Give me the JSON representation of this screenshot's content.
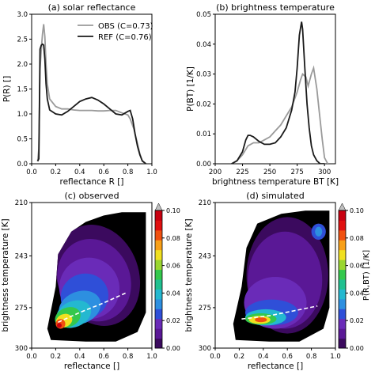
{
  "colors": {
    "obs": "#9a9a9a",
    "ref": "#1a1a1a",
    "trend": "#ffffff",
    "colormap": [
      "#000000",
      "#3b0a5e",
      "#5a1896",
      "#6a2bb8",
      "#2f4fd8",
      "#2d8fe0",
      "#24b8d0",
      "#20c090",
      "#34c84c",
      "#9ad630",
      "#f0e020",
      "#f8a018",
      "#f05010",
      "#e01010",
      "#c80010",
      "#c0c0c0"
    ]
  },
  "chart_data": [
    {
      "id": "a",
      "type": "line",
      "title": "(a) solar reflectance",
      "xlabel": "reflectance R []",
      "ylabel": "P(R) []",
      "xlim": [
        0,
        1
      ],
      "ylim": [
        0,
        3
      ],
      "xticks": [
        "0.0",
        "0.2",
        "0.4",
        "0.6",
        "0.8",
        "1.0"
      ],
      "xtick_values": [
        0,
        0.2,
        0.4,
        0.6,
        0.8,
        1.0
      ],
      "yticks": [
        "0.0",
        "0.5",
        "1.0",
        "1.5",
        "2.0",
        "2.5",
        "3.0"
      ],
      "ytick_values": [
        0,
        0.5,
        1.0,
        1.5,
        2.0,
        2.5,
        3.0
      ],
      "legend_position": "upper-right",
      "series": [
        {
          "name": "OBS (C=0.73)",
          "color": "obs",
          "x": [
            0.05,
            0.06,
            0.07,
            0.08,
            0.09,
            0.1,
            0.11,
            0.12,
            0.13,
            0.15,
            0.2,
            0.25,
            0.3,
            0.35,
            0.4,
            0.45,
            0.5,
            0.55,
            0.6,
            0.65,
            0.7,
            0.75,
            0.8,
            0.82,
            0.85,
            0.88,
            0.9,
            0.92,
            0.95
          ],
          "y": [
            0.05,
            0.3,
            1.9,
            2.3,
            2.6,
            2.8,
            2.55,
            2.0,
            1.6,
            1.3,
            1.15,
            1.1,
            1.1,
            1.08,
            1.07,
            1.07,
            1.07,
            1.06,
            1.06,
            1.07,
            1.07,
            1.02,
            0.98,
            0.9,
            0.7,
            0.4,
            0.2,
            0.05,
            0.0
          ]
        },
        {
          "name": "REF (C=0.76)",
          "color": "ref",
          "x": [
            0.05,
            0.06,
            0.07,
            0.08,
            0.09,
            0.1,
            0.11,
            0.12,
            0.13,
            0.15,
            0.2,
            0.25,
            0.3,
            0.35,
            0.4,
            0.45,
            0.5,
            0.55,
            0.6,
            0.65,
            0.7,
            0.75,
            0.8,
            0.82,
            0.84,
            0.86,
            0.88,
            0.9,
            0.92,
            0.95
          ],
          "y": [
            0.05,
            0.1,
            2.3,
            2.38,
            2.4,
            2.38,
            2.1,
            1.6,
            1.3,
            1.08,
            1.0,
            0.98,
            1.05,
            1.15,
            1.25,
            1.3,
            1.33,
            1.28,
            1.2,
            1.1,
            1.0,
            0.98,
            1.05,
            1.07,
            0.9,
            0.6,
            0.35,
            0.18,
            0.06,
            0.0
          ]
        }
      ]
    },
    {
      "id": "b",
      "type": "line",
      "title": "(b) brightness temperature",
      "xlabel": "brightness temperature BT [K]",
      "ylabel": "P(BT) [1/K]",
      "xlim": [
        200,
        310
      ],
      "ylim": [
        0,
        0.05
      ],
      "xticks": [
        "200",
        "225",
        "250",
        "275",
        "300"
      ],
      "xtick_values": [
        200,
        225,
        250,
        275,
        300
      ],
      "yticks": [
        "0.00",
        "0.01",
        "0.02",
        "0.03",
        "0.04",
        "0.05"
      ],
      "ytick_values": [
        0,
        0.01,
        0.02,
        0.03,
        0.04,
        0.05
      ],
      "series": [
        {
          "name": "OBS",
          "color": "obs",
          "x": [
            215,
            220,
            225,
            230,
            235,
            240,
            245,
            250,
            255,
            260,
            265,
            270,
            275,
            278,
            280,
            283,
            285,
            288,
            290,
            293,
            295,
            298,
            300,
            303
          ],
          "y": [
            0.0,
            0.001,
            0.003,
            0.006,
            0.007,
            0.007,
            0.008,
            0.009,
            0.011,
            0.013,
            0.016,
            0.019,
            0.024,
            0.028,
            0.03,
            0.029,
            0.026,
            0.03,
            0.032,
            0.025,
            0.018,
            0.008,
            0.002,
            0.0
          ]
        },
        {
          "name": "REF",
          "color": "ref",
          "x": [
            215,
            220,
            225,
            228,
            230,
            232,
            235,
            240,
            245,
            250,
            255,
            260,
            265,
            270,
            273,
            275,
            277,
            279,
            280,
            282,
            284,
            286,
            288,
            290,
            293,
            296,
            300
          ],
          "y": [
            0.0,
            0.001,
            0.004,
            0.008,
            0.0095,
            0.0095,
            0.009,
            0.0075,
            0.0065,
            0.0065,
            0.007,
            0.009,
            0.012,
            0.018,
            0.024,
            0.032,
            0.043,
            0.0475,
            0.045,
            0.032,
            0.02,
            0.012,
            0.006,
            0.003,
            0.001,
            0.0,
            0.0
          ]
        }
      ]
    },
    {
      "id": "c",
      "type": "heatmap",
      "title": "(c) observed",
      "xlabel": "reflectance []",
      "ylabel": "brightness temperature [K]",
      "xlim": [
        0,
        1
      ],
      "ylim": [
        300,
        210
      ],
      "xticks": [
        "0.0",
        "0.2",
        "0.4",
        "0.6",
        "0.8",
        "1.0"
      ],
      "xtick_values": [
        0,
        0.2,
        0.4,
        0.6,
        0.8,
        1.0
      ],
      "yticks": [
        "210",
        "243",
        "275",
        "300"
      ],
      "ytick_values": [
        210,
        243,
        275,
        300
      ],
      "extent": {
        "poly": [
          [
            0.16,
            295
          ],
          [
            0.13,
            288
          ],
          [
            0.2,
            262
          ],
          [
            0.22,
            242
          ],
          [
            0.33,
            228
          ],
          [
            0.45,
            222
          ],
          [
            0.6,
            218
          ],
          [
            0.75,
            216
          ],
          [
            0.95,
            216
          ],
          [
            0.95,
            278
          ],
          [
            0.88,
            290
          ],
          [
            0.7,
            296
          ],
          [
            0.45,
            296
          ]
        ]
      },
      "contours": [
        {
          "level": 1,
          "cx": 0.55,
          "cy": 255,
          "rx": 0.34,
          "ry": 32,
          "rot": -20
        },
        {
          "level": 2,
          "cx": 0.52,
          "cy": 258,
          "rx": 0.3,
          "ry": 26,
          "rot": -22
        },
        {
          "level": 3,
          "cx": 0.48,
          "cy": 263,
          "rx": 0.25,
          "ry": 19,
          "rot": -22
        },
        {
          "level": 4,
          "cx": 0.44,
          "cy": 268,
          "rx": 0.2,
          "ry": 14,
          "rot": -22
        },
        {
          "level": 5,
          "cx": 0.4,
          "cy": 275,
          "rx": 0.18,
          "ry": 10,
          "rot": -22
        },
        {
          "level": 6,
          "cx": 0.35,
          "cy": 279,
          "rx": 0.15,
          "ry": 8,
          "rot": -22
        },
        {
          "level": 8,
          "cx": 0.3,
          "cy": 281,
          "rx": 0.11,
          "ry": 6,
          "rot": -22
        },
        {
          "level": 10,
          "cx": 0.27,
          "cy": 283,
          "rx": 0.07,
          "ry": 4,
          "rot": -22
        },
        {
          "level": 12,
          "cx": 0.24,
          "cy": 285,
          "rx": 0.04,
          "ry": 3,
          "rot": -20
        },
        {
          "level": 14,
          "cx": 0.23,
          "cy": 286,
          "rx": 0.02,
          "ry": 1.5,
          "rot": 0
        }
      ],
      "trend": {
        "x": [
          0.22,
          0.4,
          0.6,
          0.78
        ],
        "y": [
          284,
          278,
          272,
          266
        ]
      }
    },
    {
      "id": "d",
      "type": "heatmap",
      "title": "(d) simulated",
      "xlabel": "reflectance []",
      "ylabel": "brightness temperature [K]",
      "xlim": [
        0,
        1
      ],
      "ylim": [
        300,
        210
      ],
      "xticks": [
        "0.0",
        "0.2",
        "0.4",
        "0.6",
        "0.8",
        "1.0"
      ],
      "xtick_values": [
        0,
        0.2,
        0.4,
        0.6,
        0.8,
        1.0
      ],
      "yticks": [
        "210",
        "243",
        "275",
        "300"
      ],
      "ytick_values": [
        210,
        243,
        275,
        300
      ],
      "extent": {
        "poly": [
          [
            0.17,
            295
          ],
          [
            0.15,
            285
          ],
          [
            0.22,
            262
          ],
          [
            0.26,
            238
          ],
          [
            0.35,
            223
          ],
          [
            0.55,
            217
          ],
          [
            0.75,
            215
          ],
          [
            0.95,
            215
          ],
          [
            0.95,
            275
          ],
          [
            0.9,
            288
          ],
          [
            0.7,
            296
          ],
          [
            0.45,
            296
          ]
        ]
      },
      "contours": [
        {
          "level": 1,
          "cx": 0.6,
          "cy": 255,
          "rx": 0.34,
          "ry": 36,
          "rot": 0
        },
        {
          "level": 2,
          "cx": 0.58,
          "cy": 258,
          "rx": 0.31,
          "ry": 30,
          "rot": 0
        },
        {
          "level": 3,
          "cx": 0.5,
          "cy": 272,
          "rx": 0.26,
          "ry": 16,
          "rot": 0
        },
        {
          "level": 4,
          "cx": 0.47,
          "cy": 278,
          "rx": 0.22,
          "ry": 8,
          "rot": 0
        },
        {
          "level": 6,
          "cx": 0.42,
          "cy": 281,
          "rx": 0.17,
          "ry": 5,
          "rot": 0
        },
        {
          "level": 8,
          "cx": 0.38,
          "cy": 282,
          "rx": 0.13,
          "ry": 3.5,
          "rot": 0
        },
        {
          "level": 10,
          "cx": 0.37,
          "cy": 282.5,
          "rx": 0.09,
          "ry": 2.5,
          "rot": 0
        },
        {
          "level": 12,
          "cx": 0.38,
          "cy": 282.5,
          "rx": 0.05,
          "ry": 1.5,
          "rot": 0
        },
        {
          "level": 4,
          "cx": 0.86,
          "cy": 228,
          "rx": 0.06,
          "ry": 5,
          "rot": 0
        },
        {
          "level": 5,
          "cx": 0.86,
          "cy": 228,
          "rx": 0.03,
          "ry": 3,
          "rot": 0
        }
      ],
      "trend": {
        "x": [
          0.22,
          0.45,
          0.65,
          0.85
        ],
        "y": [
          282,
          280,
          277,
          274
        ]
      }
    }
  ],
  "colorbar": {
    "label": "P(R,BT) [1/K]",
    "ticks": [
      "0.00",
      "0.02",
      "0.04",
      "0.06",
      "0.08",
      "0.10"
    ],
    "tick_values": [
      0,
      0.02,
      0.04,
      0.06,
      0.08,
      0.1
    ],
    "range": [
      0,
      0.1
    ]
  }
}
